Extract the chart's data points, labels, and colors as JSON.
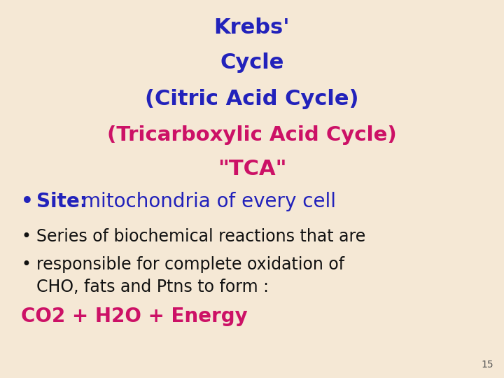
{
  "bg_color": "#f5e8d5",
  "title_lines": [
    "Krebs'",
    "Cycle",
    "(Citric Acid Cycle)"
  ],
  "title_color": "#2222bb",
  "subtitle_line": "(Tricarboxylic Acid Cycle)",
  "subtitle_color": "#cc1166",
  "tca_line": "\"TCA\"",
  "tca_color": "#cc1166",
  "site_bullet": "•",
  "site_label": "Site:",
  "site_label_color": "#2222bb",
  "site_text": " mitochondria of every cell",
  "site_text_color": "#2222bb",
  "bullet_items_line1": "Series of biochemical reactions that are",
  "bullet_items_line2a": "responsible for complete oxidation of",
  "bullet_items_line2b": "CHO, fats and Ptns to form :",
  "bullet_color": "#111111",
  "formula_text": "CO2 + H2O + Energy",
  "formula_color": "#cc1166",
  "page_number": "15",
  "page_color": "#555555",
  "title_fontsize": 22,
  "subtitle_fontsize": 21,
  "tca_fontsize": 22,
  "site_fontsize": 20,
  "site_label_fontsize": 20,
  "bullet_fontsize": 17,
  "formula_fontsize": 20,
  "page_fontsize": 10
}
